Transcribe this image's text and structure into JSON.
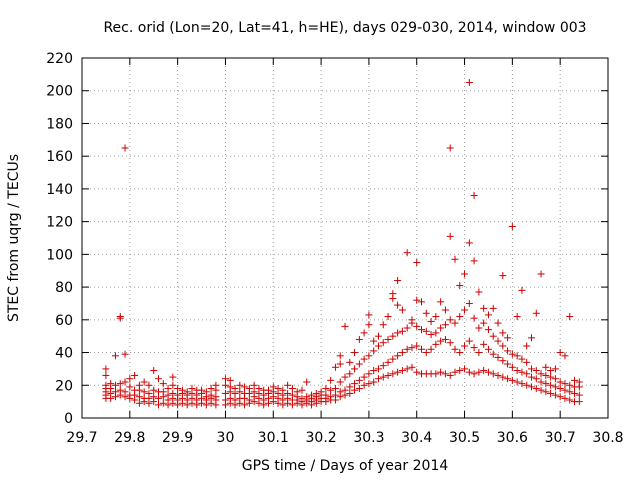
{
  "chart_data": {
    "type": "scatter",
    "title": "Rec. orid (Lon=20, Lat=41, h=HE), days 029-030, 2014, window 003",
    "xlabel": "GPS time / Days of year 2014",
    "ylabel": "STEC from uqrg / TECUs",
    "xlim": [
      29.7,
      30.8
    ],
    "ylim": [
      0,
      220
    ],
    "xticks": [
      "29.7",
      "29.8",
      "29.9",
      "30",
      "30.1",
      "30.2",
      "30.3",
      "30.4",
      "30.5",
      "30.6",
      "30.7",
      "30.8"
    ],
    "yticks": [
      "0",
      "20",
      "40",
      "60",
      "80",
      "100",
      "120",
      "140",
      "160",
      "180",
      "200",
      "220"
    ],
    "grid": true,
    "legend": "none",
    "marker": "+",
    "color": "#cc0000",
    "points": [
      [
        29.75,
        12
      ],
      [
        29.75,
        14
      ],
      [
        29.75,
        16
      ],
      [
        29.75,
        18
      ],
      [
        29.75,
        20
      ],
      [
        29.75,
        26
      ],
      [
        29.75,
        30
      ],
      [
        29.76,
        12
      ],
      [
        29.76,
        15
      ],
      [
        29.76,
        18
      ],
      [
        29.76,
        21
      ],
      [
        29.77,
        13
      ],
      [
        29.77,
        16
      ],
      [
        29.77,
        20
      ],
      [
        29.77,
        38
      ],
      [
        29.78,
        14
      ],
      [
        29.78,
        17
      ],
      [
        29.78,
        21
      ],
      [
        29.78,
        62
      ],
      [
        29.78,
        61
      ],
      [
        29.79,
        13
      ],
      [
        29.79,
        16
      ],
      [
        29.79,
        22
      ],
      [
        29.79,
        39
      ],
      [
        29.79,
        165
      ],
      [
        29.8,
        12
      ],
      [
        29.8,
        14
      ],
      [
        29.8,
        19
      ],
      [
        29.8,
        24
      ],
      [
        29.81,
        11
      ],
      [
        29.81,
        14
      ],
      [
        29.81,
        17
      ],
      [
        29.81,
        26
      ],
      [
        29.82,
        9
      ],
      [
        29.82,
        13
      ],
      [
        29.82,
        17
      ],
      [
        29.82,
        20
      ],
      [
        29.83,
        10
      ],
      [
        29.83,
        12
      ],
      [
        29.83,
        16
      ],
      [
        29.83,
        22
      ],
      [
        29.84,
        9
      ],
      [
        29.84,
        12
      ],
      [
        29.84,
        15
      ],
      [
        29.84,
        20
      ],
      [
        29.85,
        10
      ],
      [
        29.85,
        13
      ],
      [
        29.85,
        17
      ],
      [
        29.85,
        29
      ],
      [
        29.86,
        8
      ],
      [
        29.86,
        12
      ],
      [
        29.86,
        16
      ],
      [
        29.86,
        24
      ],
      [
        29.87,
        9
      ],
      [
        29.87,
        13
      ],
      [
        29.87,
        16
      ],
      [
        29.87,
        21
      ],
      [
        29.88,
        8
      ],
      [
        29.88,
        11
      ],
      [
        29.88,
        14
      ],
      [
        29.88,
        18
      ],
      [
        29.89,
        9
      ],
      [
        29.89,
        12
      ],
      [
        29.89,
        15
      ],
      [
        29.89,
        20
      ],
      [
        29.89,
        25
      ],
      [
        29.9,
        8
      ],
      [
        29.9,
        11
      ],
      [
        29.9,
        14
      ],
      [
        29.9,
        18
      ],
      [
        29.91,
        9
      ],
      [
        29.91,
        12
      ],
      [
        29.91,
        15
      ],
      [
        29.91,
        17
      ],
      [
        29.92,
        8
      ],
      [
        29.92,
        11
      ],
      [
        29.92,
        14
      ],
      [
        29.92,
        16
      ],
      [
        29.93,
        9
      ],
      [
        29.93,
        12
      ],
      [
        29.93,
        15
      ],
      [
        29.93,
        18
      ],
      [
        29.94,
        8
      ],
      [
        29.94,
        11
      ],
      [
        29.94,
        14
      ],
      [
        29.94,
        17
      ],
      [
        29.95,
        9
      ],
      [
        29.95,
        12
      ],
      [
        29.95,
        15
      ],
      [
        29.95,
        17
      ],
      [
        29.96,
        8
      ],
      [
        29.96,
        11
      ],
      [
        29.96,
        13
      ],
      [
        29.96,
        16
      ],
      [
        29.97,
        9
      ],
      [
        29.97,
        12
      ],
      [
        29.97,
        14
      ],
      [
        29.97,
        18
      ],
      [
        29.98,
        8
      ],
      [
        29.98,
        11
      ],
      [
        29.98,
        13
      ],
      [
        29.98,
        17
      ],
      [
        29.98,
        20
      ],
      [
        30.0,
        8
      ],
      [
        30.0,
        11
      ],
      [
        30.0,
        15
      ],
      [
        30.0,
        20
      ],
      [
        30.0,
        24
      ],
      [
        30.01,
        9
      ],
      [
        30.01,
        12
      ],
      [
        30.01,
        16
      ],
      [
        30.01,
        19
      ],
      [
        30.01,
        23
      ],
      [
        30.02,
        8
      ],
      [
        30.02,
        11
      ],
      [
        30.02,
        15
      ],
      [
        30.02,
        18
      ],
      [
        30.03,
        9
      ],
      [
        30.03,
        12
      ],
      [
        30.03,
        16
      ],
      [
        30.03,
        20
      ],
      [
        30.04,
        8
      ],
      [
        30.04,
        12
      ],
      [
        30.04,
        15
      ],
      [
        30.04,
        19
      ],
      [
        30.05,
        9
      ],
      [
        30.05,
        11
      ],
      [
        30.05,
        15
      ],
      [
        30.05,
        18
      ],
      [
        30.06,
        10
      ],
      [
        30.06,
        13
      ],
      [
        30.06,
        16
      ],
      [
        30.06,
        20
      ],
      [
        30.07,
        9
      ],
      [
        30.07,
        12
      ],
      [
        30.07,
        15
      ],
      [
        30.07,
        18
      ],
      [
        30.08,
        8
      ],
      [
        30.08,
        11
      ],
      [
        30.08,
        14
      ],
      [
        30.08,
        17
      ],
      [
        30.09,
        9
      ],
      [
        30.09,
        12
      ],
      [
        30.09,
        15
      ],
      [
        30.09,
        17
      ],
      [
        30.1,
        10
      ],
      [
        30.1,
        13
      ],
      [
        30.1,
        16
      ],
      [
        30.1,
        19
      ],
      [
        30.11,
        9
      ],
      [
        30.11,
        12
      ],
      [
        30.11,
        15
      ],
      [
        30.11,
        18
      ],
      [
        30.12,
        8
      ],
      [
        30.12,
        11
      ],
      [
        30.12,
        14
      ],
      [
        30.12,
        17
      ],
      [
        30.13,
        9
      ],
      [
        30.13,
        12
      ],
      [
        30.13,
        15
      ],
      [
        30.13,
        20
      ],
      [
        30.14,
        8
      ],
      [
        30.14,
        11
      ],
      [
        30.14,
        14
      ],
      [
        30.14,
        18
      ],
      [
        30.15,
        9
      ],
      [
        30.15,
        11
      ],
      [
        30.15,
        13
      ],
      [
        30.15,
        16
      ],
      [
        30.16,
        8
      ],
      [
        30.16,
        10
      ],
      [
        30.16,
        12
      ],
      [
        30.16,
        17
      ],
      [
        30.17,
        9
      ],
      [
        30.17,
        11
      ],
      [
        30.17,
        13
      ],
      [
        30.17,
        22
      ],
      [
        30.18,
        8
      ],
      [
        30.18,
        10
      ],
      [
        30.18,
        12
      ],
      [
        30.18,
        14
      ],
      [
        30.19,
        9
      ],
      [
        30.19,
        11
      ],
      [
        30.19,
        13
      ],
      [
        30.19,
        15
      ],
      [
        30.2,
        10
      ],
      [
        30.2,
        12
      ],
      [
        30.2,
        14
      ],
      [
        30.2,
        16
      ],
      [
        30.21,
        10
      ],
      [
        30.21,
        12
      ],
      [
        30.21,
        14
      ],
      [
        30.21,
        18
      ],
      [
        30.22,
        11
      ],
      [
        30.22,
        13
      ],
      [
        30.22,
        17
      ],
      [
        30.22,
        23
      ],
      [
        30.23,
        11
      ],
      [
        30.23,
        14
      ],
      [
        30.23,
        18
      ],
      [
        30.23,
        31
      ],
      [
        30.24,
        13
      ],
      [
        30.24,
        16
      ],
      [
        30.24,
        22
      ],
      [
        30.24,
        33
      ],
      [
        30.24,
        38
      ],
      [
        30.25,
        14
      ],
      [
        30.25,
        17
      ],
      [
        30.25,
        25
      ],
      [
        30.25,
        56
      ],
      [
        30.26,
        15
      ],
      [
        30.26,
        19
      ],
      [
        30.26,
        27
      ],
      [
        30.26,
        34
      ],
      [
        30.27,
        17
      ],
      [
        30.27,
        21
      ],
      [
        30.27,
        30
      ],
      [
        30.27,
        40
      ],
      [
        30.28,
        18
      ],
      [
        30.28,
        23
      ],
      [
        30.28,
        33
      ],
      [
        30.28,
        48
      ],
      [
        30.29,
        20
      ],
      [
        30.29,
        25
      ],
      [
        30.29,
        36
      ],
      [
        30.29,
        52
      ],
      [
        30.3,
        21
      ],
      [
        30.3,
        27
      ],
      [
        30.3,
        38
      ],
      [
        30.3,
        57
      ],
      [
        30.3,
        63
      ],
      [
        30.31,
        22
      ],
      [
        30.31,
        29
      ],
      [
        30.31,
        41
      ],
      [
        30.31,
        47
      ],
      [
        30.32,
        24
      ],
      [
        30.32,
        30
      ],
      [
        30.32,
        44
      ],
      [
        30.32,
        50
      ],
      [
        30.33,
        25
      ],
      [
        30.33,
        32
      ],
      [
        30.33,
        46
      ],
      [
        30.33,
        57
      ],
      [
        30.34,
        26
      ],
      [
        30.34,
        34
      ],
      [
        30.34,
        48
      ],
      [
        30.34,
        62
      ],
      [
        30.35,
        27
      ],
      [
        30.35,
        36
      ],
      [
        30.35,
        50
      ],
      [
        30.35,
        76
      ],
      [
        30.35,
        73
      ],
      [
        30.36,
        28
      ],
      [
        30.36,
        38
      ],
      [
        30.36,
        52
      ],
      [
        30.36,
        69
      ],
      [
        30.36,
        84
      ],
      [
        30.37,
        29
      ],
      [
        30.37,
        40
      ],
      [
        30.37,
        53
      ],
      [
        30.37,
        66
      ],
      [
        30.38,
        30
      ],
      [
        30.38,
        42
      ],
      [
        30.38,
        55
      ],
      [
        30.38,
        101
      ],
      [
        30.39,
        31
      ],
      [
        30.39,
        43
      ],
      [
        30.39,
        58
      ],
      [
        30.39,
        60
      ],
      [
        30.4,
        28
      ],
      [
        30.4,
        44
      ],
      [
        30.4,
        56
      ],
      [
        30.4,
        72
      ],
      [
        30.4,
        95
      ],
      [
        30.41,
        27
      ],
      [
        30.41,
        42
      ],
      [
        30.41,
        54
      ],
      [
        30.41,
        71
      ],
      [
        30.42,
        27
      ],
      [
        30.42,
        40
      ],
      [
        30.42,
        53
      ],
      [
        30.42,
        64
      ],
      [
        30.43,
        27
      ],
      [
        30.43,
        42
      ],
      [
        30.43,
        51
      ],
      [
        30.43,
        59
      ],
      [
        30.44,
        27
      ],
      [
        30.44,
        45
      ],
      [
        30.44,
        52
      ],
      [
        30.44,
        62
      ],
      [
        30.45,
        28
      ],
      [
        30.45,
        47
      ],
      [
        30.45,
        55
      ],
      [
        30.45,
        71
      ],
      [
        30.46,
        27
      ],
      [
        30.46,
        48
      ],
      [
        30.46,
        57
      ],
      [
        30.46,
        66
      ],
      [
        30.47,
        26
      ],
      [
        30.47,
        46
      ],
      [
        30.47,
        60
      ],
      [
        30.47,
        111
      ],
      [
        30.47,
        165
      ],
      [
        30.48,
        28
      ],
      [
        30.48,
        42
      ],
      [
        30.48,
        58
      ],
      [
        30.48,
        97
      ],
      [
        30.49,
        29
      ],
      [
        30.49,
        40
      ],
      [
        30.49,
        62
      ],
      [
        30.49,
        81
      ],
      [
        30.5,
        30
      ],
      [
        30.5,
        44
      ],
      [
        30.5,
        66
      ],
      [
        30.5,
        88
      ],
      [
        30.51,
        28
      ],
      [
        30.51,
        47
      ],
      [
        30.51,
        70
      ],
      [
        30.51,
        107
      ],
      [
        30.51,
        205
      ],
      [
        30.52,
        27
      ],
      [
        30.52,
        43
      ],
      [
        30.52,
        61
      ],
      [
        30.52,
        96
      ],
      [
        30.52,
        136
      ],
      [
        30.53,
        28
      ],
      [
        30.53,
        40
      ],
      [
        30.53,
        55
      ],
      [
        30.53,
        77
      ],
      [
        30.54,
        29
      ],
      [
        30.54,
        45
      ],
      [
        30.54,
        58
      ],
      [
        30.54,
        67
      ],
      [
        30.55,
        28
      ],
      [
        30.55,
        42
      ],
      [
        30.55,
        54
      ],
      [
        30.55,
        63
      ],
      [
        30.56,
        27
      ],
      [
        30.56,
        39
      ],
      [
        30.56,
        50
      ],
      [
        30.56,
        67
      ],
      [
        30.57,
        26
      ],
      [
        30.57,
        37
      ],
      [
        30.57,
        47
      ],
      [
        30.57,
        58
      ],
      [
        30.58,
        25
      ],
      [
        30.58,
        35
      ],
      [
        30.58,
        44
      ],
      [
        30.58,
        52
      ],
      [
        30.58,
        87
      ],
      [
        30.59,
        24
      ],
      [
        30.59,
        33
      ],
      [
        30.59,
        41
      ],
      [
        30.59,
        49
      ],
      [
        30.6,
        23
      ],
      [
        30.6,
        31
      ],
      [
        30.6,
        39
      ],
      [
        30.6,
        117
      ],
      [
        30.61,
        22
      ],
      [
        30.61,
        29
      ],
      [
        30.61,
        38
      ],
      [
        30.61,
        62
      ],
      [
        30.62,
        21
      ],
      [
        30.62,
        28
      ],
      [
        30.62,
        36
      ],
      [
        30.62,
        78
      ],
      [
        30.63,
        20
      ],
      [
        30.63,
        27
      ],
      [
        30.63,
        34
      ],
      [
        30.63,
        44
      ],
      [
        30.64,
        19
      ],
      [
        30.64,
        25
      ],
      [
        30.64,
        30
      ],
      [
        30.64,
        49
      ],
      [
        30.65,
        18
      ],
      [
        30.65,
        24
      ],
      [
        30.65,
        29
      ],
      [
        30.65,
        64
      ],
      [
        30.66,
        17
      ],
      [
        30.66,
        22
      ],
      [
        30.66,
        27
      ],
      [
        30.66,
        88
      ],
      [
        30.67,
        16
      ],
      [
        30.67,
        21
      ],
      [
        30.67,
        26
      ],
      [
        30.67,
        31
      ],
      [
        30.68,
        15
      ],
      [
        30.68,
        20
      ],
      [
        30.68,
        25
      ],
      [
        30.68,
        29
      ],
      [
        30.69,
        14
      ],
      [
        30.69,
        19
      ],
      [
        30.69,
        24
      ],
      [
        30.69,
        30
      ],
      [
        30.7,
        13
      ],
      [
        30.7,
        18
      ],
      [
        30.7,
        22
      ],
      [
        30.7,
        40
      ],
      [
        30.71,
        12
      ],
      [
        30.71,
        17
      ],
      [
        30.71,
        21
      ],
      [
        30.71,
        38
      ],
      [
        30.72,
        11
      ],
      [
        30.72,
        16
      ],
      [
        30.72,
        20
      ],
      [
        30.72,
        62
      ],
      [
        30.73,
        10
      ],
      [
        30.73,
        15
      ],
      [
        30.73,
        19
      ],
      [
        30.73,
        23
      ],
      [
        30.74,
        10
      ],
      [
        30.74,
        14
      ],
      [
        30.74,
        19
      ],
      [
        30.74,
        22
      ]
    ]
  }
}
